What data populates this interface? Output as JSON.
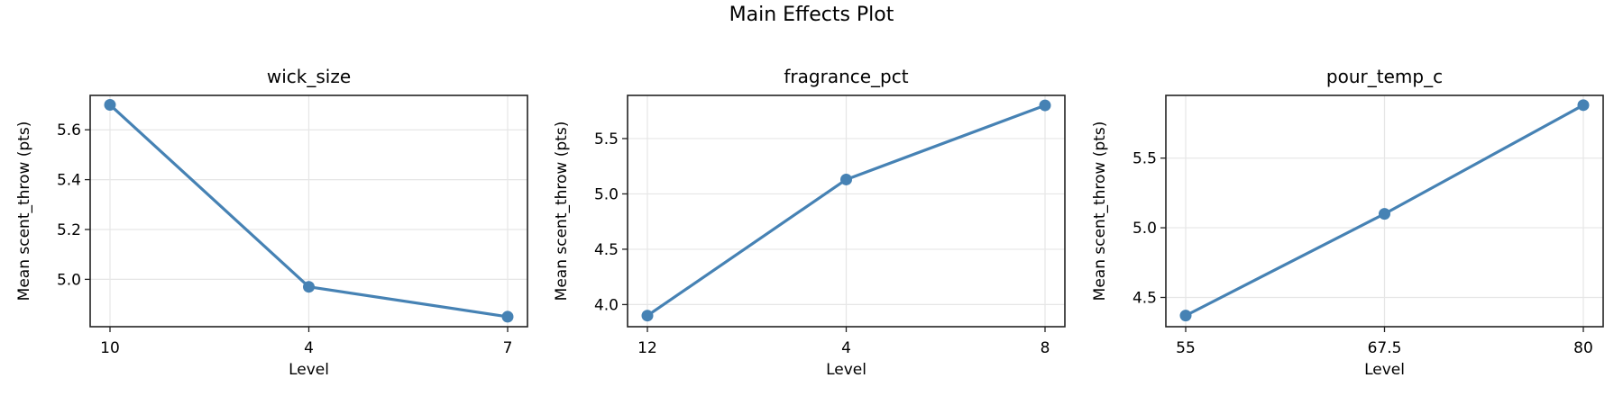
{
  "figure": {
    "title": "Main Effects Plot",
    "line_color": "#4682b4",
    "grid_color": "#e6e6e6",
    "axis_color": "#222222"
  },
  "chart_data": [
    {
      "type": "line",
      "title": "wick_size",
      "xlabel": "Level",
      "ylabel": "Mean scent_throw (pts)",
      "categories": [
        "10",
        "4",
        "7"
      ],
      "values": [
        5.7,
        4.97,
        4.85
      ],
      "yticks": [
        5.0,
        5.2,
        5.4,
        5.6
      ],
      "ytick_labels": [
        "5.0",
        "5.2",
        "5.4",
        "5.6"
      ],
      "ylim": [
        4.81,
        5.738
      ],
      "grid": true,
      "marker": "circle"
    },
    {
      "type": "line",
      "title": "fragrance_pct",
      "xlabel": "Level",
      "ylabel": "Mean scent_throw (pts)",
      "categories": [
        "12",
        "4",
        "8"
      ],
      "values": [
        3.9,
        5.13,
        5.8
      ],
      "yticks": [
        4.0,
        4.5,
        5.0,
        5.5
      ],
      "ytick_labels": [
        "4.0",
        "4.5",
        "5.0",
        "5.5"
      ],
      "ylim": [
        3.8,
        5.89
      ],
      "grid": true,
      "marker": "circle"
    },
    {
      "type": "line",
      "title": "pour_temp_c",
      "xlabel": "Level",
      "ylabel": "Mean scent_throw (pts)",
      "categories": [
        "55",
        "67.5",
        "80"
      ],
      "values": [
        4.37,
        5.1,
        5.88
      ],
      "yticks": [
        4.5,
        5.0,
        5.5
      ],
      "ytick_labels": [
        "4.5",
        "5.0",
        "5.5"
      ],
      "ylim": [
        4.29,
        5.95
      ],
      "grid": true,
      "marker": "circle"
    }
  ]
}
